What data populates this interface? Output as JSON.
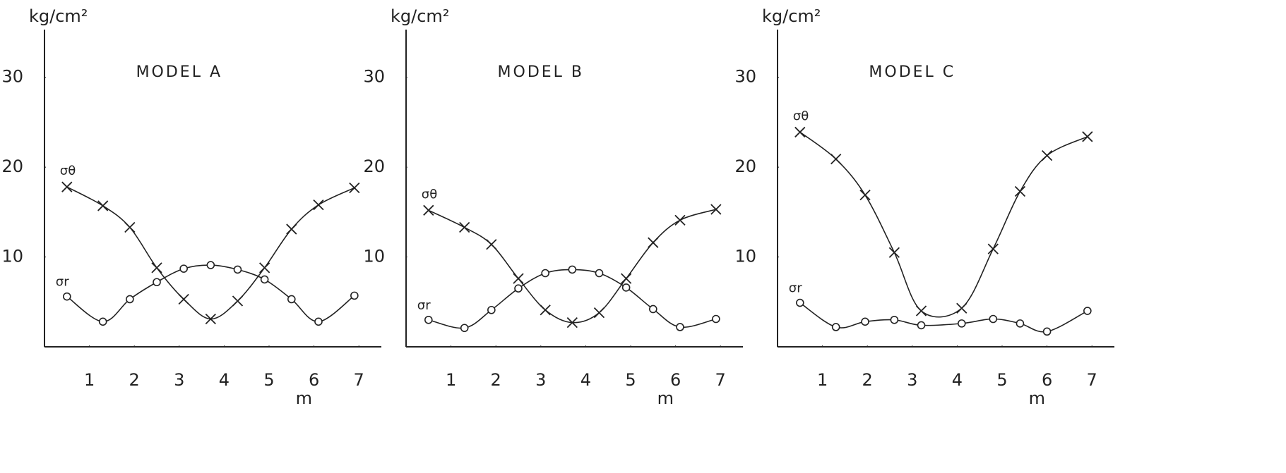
{
  "chart_data": [
    {
      "type": "line",
      "title": "MODEL A",
      "ylabel": "kg/cm²",
      "xlabel": "m",
      "x": [
        0.5,
        1.3,
        1.9,
        2.5,
        3.1,
        3.7,
        4.3,
        4.9,
        5.5,
        6.1,
        6.9
      ],
      "series": [
        {
          "name": "σθ",
          "color": "#222222",
          "marker": "x",
          "values": [
            17.8,
            15.7,
            13.3,
            8.8,
            5.3,
            3.1,
            5.1,
            8.8,
            13.1,
            15.8,
            17.7
          ]
        },
        {
          "name": "σr",
          "color": "#222222",
          "marker": "o",
          "values": [
            5.6,
            2.8,
            5.3,
            7.2,
            8.7,
            9.1,
            8.6,
            7.5,
            5.3,
            2.8,
            5.7
          ]
        }
      ],
      "xlim": [
        0,
        7.5
      ],
      "ylim": [
        0,
        35
      ],
      "xticks": [
        1,
        2,
        3,
        4,
        5,
        6,
        7
      ],
      "yticks": [
        10,
        20,
        30
      ],
      "grid": false
    },
    {
      "type": "line",
      "title": "MODEL B",
      "ylabel": "kg/cm²",
      "xlabel": "m",
      "x": [
        0.5,
        1.3,
        1.9,
        2.5,
        3.1,
        3.7,
        4.3,
        4.9,
        5.5,
        6.1,
        6.9
      ],
      "series": [
        {
          "name": "σθ",
          "color": "#222222",
          "marker": "x",
          "values": [
            15.2,
            13.3,
            11.4,
            7.6,
            4.1,
            2.7,
            3.8,
            7.6,
            11.6,
            14.1,
            15.3
          ]
        },
        {
          "name": "σr",
          "color": "#222222",
          "marker": "o",
          "values": [
            3.0,
            2.1,
            4.1,
            6.5,
            8.2,
            8.6,
            8.2,
            6.6,
            4.2,
            2.2,
            3.1
          ]
        }
      ],
      "xlim": [
        0,
        7.5
      ],
      "ylim": [
        0,
        35
      ],
      "xticks": [
        1,
        2,
        3,
        4,
        5,
        6,
        7
      ],
      "yticks": [
        10,
        20,
        30
      ],
      "grid": false
    },
    {
      "type": "line",
      "title": "MODEL C",
      "ylabel": "kg/cm²",
      "xlabel": "m",
      "x": [
        0.5,
        1.3,
        1.95,
        2.6,
        3.2,
        4.1,
        4.8,
        5.4,
        6.0,
        6.9
      ],
      "series": [
        {
          "name": "σθ",
          "color": "#222222",
          "marker": "x",
          "values": [
            23.9,
            20.9,
            16.9,
            10.5,
            4.0,
            4.3,
            10.9,
            17.3,
            21.3,
            23.4
          ]
        },
        {
          "name": "σr",
          "color": "#222222",
          "marker": "o",
          "values": [
            4.9,
            2.2,
            2.8,
            3.0,
            2.4,
            2.6,
            3.1,
            2.6,
            1.7,
            4.0
          ]
        }
      ],
      "xlim": [
        0,
        7.5
      ],
      "ylim": [
        0,
        35
      ],
      "xticks": [
        1,
        2,
        3,
        4,
        5,
        6,
        7
      ],
      "yticks": [
        10,
        20,
        30
      ],
      "grid": false
    }
  ]
}
